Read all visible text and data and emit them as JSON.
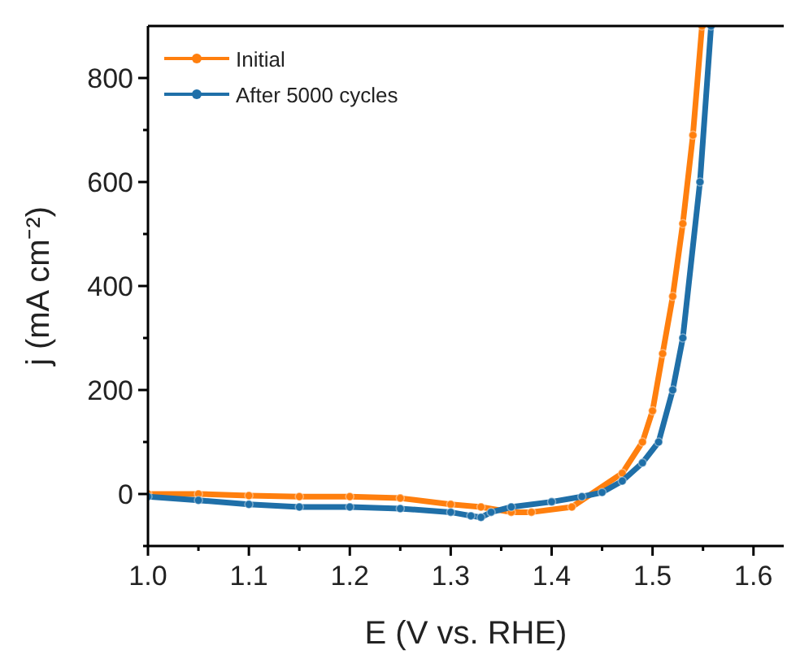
{
  "chart_data": {
    "type": "line",
    "xlabel": "E (V vs. RHE)",
    "ylabel": "j (mA cm⁻²)",
    "xlim": [
      1.0,
      1.63
    ],
    "ylim": [
      -100,
      900
    ],
    "xticks": [
      {
        "value": 1.0,
        "label": "1.0"
      },
      {
        "value": 1.05,
        "label": null
      },
      {
        "value": 1.1,
        "label": "1.1"
      },
      {
        "value": 1.15,
        "label": null
      },
      {
        "value": 1.2,
        "label": "1.2"
      },
      {
        "value": 1.25,
        "label": null
      },
      {
        "value": 1.3,
        "label": "1.3"
      },
      {
        "value": 1.35,
        "label": null
      },
      {
        "value": 1.4,
        "label": "1.4"
      },
      {
        "value": 1.45,
        "label": null
      },
      {
        "value": 1.5,
        "label": "1.5"
      },
      {
        "value": 1.55,
        "label": null
      },
      {
        "value": 1.6,
        "label": "1.6"
      }
    ],
    "yticks": [
      {
        "value": -100,
        "label": null
      },
      0,
      {
        "value": 100,
        "label": null
      },
      200,
      {
        "value": 300,
        "label": null
      },
      400,
      {
        "value": 500,
        "label": null
      },
      600,
      {
        "value": 700,
        "label": null
      },
      800
    ],
    "marker": "circle",
    "line_style": "solid",
    "legend": "top left",
    "grid": false,
    "series": [
      {
        "name": "Initial",
        "color": "#ff7f0e",
        "x": [
          1.0,
          1.05,
          1.1,
          1.15,
          1.2,
          1.25,
          1.3,
          1.33,
          1.36,
          1.38,
          1.42,
          1.47,
          1.49,
          1.5,
          1.51,
          1.52,
          1.53,
          1.54,
          1.549
        ],
        "values": [
          0,
          0,
          -3,
          -5,
          -5,
          -8,
          -20,
          -25,
          -35,
          -35,
          -25,
          40,
          100,
          160,
          270,
          380,
          520,
          690,
          900
        ]
      },
      {
        "name": "After 5000 cycles",
        "color": "#1f6fa8",
        "x": [
          1.0,
          1.05,
          1.1,
          1.15,
          1.2,
          1.25,
          1.3,
          1.32,
          1.33,
          1.34,
          1.36,
          1.4,
          1.43,
          1.45,
          1.47,
          1.49,
          1.506,
          1.52,
          1.53,
          1.547,
          1.558
        ],
        "values": [
          -5,
          -12,
          -20,
          -25,
          -25,
          -28,
          -35,
          -42,
          -45,
          -35,
          -25,
          -15,
          -5,
          3,
          25,
          60,
          100,
          200,
          300,
          600,
          900
        ]
      }
    ]
  }
}
